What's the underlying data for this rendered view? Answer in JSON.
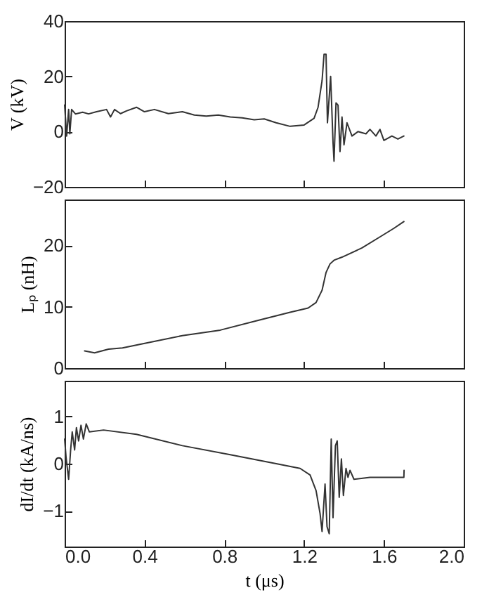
{
  "chart_data": [
    {
      "type": "line",
      "ylabel": "V (kV)",
      "xlim": [
        0,
        2.0
      ],
      "xticks": [
        0,
        0.4,
        0.8,
        1.2,
        1.6,
        2
      ],
      "ylim": [
        -20,
        40
      ],
      "yticks": [
        -20,
        0,
        20,
        40
      ],
      "tick_labels": "y",
      "x": [
        0,
        0.01,
        0.02,
        0.026,
        0.035,
        0.054,
        0.09,
        0.12,
        0.16,
        0.21,
        0.23,
        0.25,
        0.28,
        0.31,
        0.36,
        0.4,
        0.45,
        0.52,
        0.59,
        0.65,
        0.71,
        0.77,
        0.83,
        0.89,
        0.95,
        1.0,
        1.06,
        1.13,
        1.2,
        1.25,
        1.27,
        1.29,
        1.3,
        1.31,
        1.317,
        1.333,
        1.345,
        1.35,
        1.36,
        1.37,
        1.38,
        1.39,
        1.4,
        1.415,
        1.44,
        1.47,
        1.51,
        1.53,
        1.56,
        1.58,
        1.6,
        1.64,
        1.67,
        1.7
      ],
      "series": [
        {
          "color": "#333333",
          "values": [
            9.6,
            -1.6,
            8,
            -0.8,
            8,
            6.4,
            7,
            6.4,
            7.2,
            8,
            5.3,
            8,
            6.5,
            7.5,
            8.8,
            7.2,
            8,
            6.5,
            7.2,
            6,
            5.6,
            6,
            5.3,
            5,
            4.3,
            4.6,
            3.2,
            1.9,
            2.4,
            4.8,
            8.8,
            18.4,
            28,
            28,
            3.2,
            20,
            -4,
            -10.7,
            10.4,
            9.6,
            -7.2,
            5.3,
            -4.8,
            3.2,
            -1.6,
            0,
            -0.8,
            0.8,
            -1.6,
            0.8,
            -3.2,
            -1.6,
            -2.7,
            -1.6
          ]
        }
      ]
    },
    {
      "type": "line",
      "ylabel": "Lₚ (nH)",
      "xlim": [
        0,
        2.0
      ],
      "xticks": [
        0,
        0.4,
        0.8,
        1.2,
        1.6,
        2
      ],
      "ylim": [
        0,
        27.5
      ],
      "yticks": [
        0,
        10,
        20
      ],
      "tick_labels": "y",
      "x": [
        0.1,
        0.15,
        0.22,
        0.29,
        0.41,
        0.59,
        0.78,
        0.97,
        1.13,
        1.22,
        1.26,
        1.29,
        1.31,
        1.33,
        1.35,
        1.39,
        1.49,
        1.58,
        1.65,
        1.7
      ],
      "series": [
        {
          "color": "#333333",
          "values": [
            2.8,
            2.5,
            3.1,
            3.3,
            4.1,
            5.3,
            6.2,
            7.8,
            9.1,
            9.8,
            10.7,
            12.7,
            15.6,
            17.0,
            17.6,
            18.1,
            19.6,
            21.4,
            22.8,
            23.9
          ]
        }
      ]
    },
    {
      "type": "line",
      "xlabel": "t (μs)",
      "ylabel": "dI/dt (kA/ns)",
      "xlim": [
        0,
        2.0
      ],
      "xticks": [
        {
          "value": 0,
          "label": "0.0"
        },
        {
          "value": 0.4,
          "label": "0.4"
        },
        {
          "value": 0.8,
          "label": "0.8"
        },
        {
          "value": 1.2,
          "label": "1.2"
        },
        {
          "value": 1.6,
          "label": "1.6"
        },
        {
          "value": 2,
          "label": "2.0"
        }
      ],
      "ylim": [
        -1.75,
        1.75
      ],
      "yticks": [
        -1,
        0,
        1
      ],
      "x": [
        0,
        0.007,
        0.02,
        0.03,
        0.038,
        0.05,
        0.059,
        0.07,
        0.082,
        0.094,
        0.108,
        0.124,
        0.195,
        0.36,
        0.59,
        0.83,
        1.06,
        1.18,
        1.23,
        1.26,
        1.28,
        1.29,
        1.305,
        1.315,
        1.326,
        1.336,
        1.345,
        1.357,
        1.366,
        1.376,
        1.387,
        1.397,
        1.41,
        1.42,
        1.43,
        1.45,
        1.53,
        1.7,
        1.701
      ],
      "series": [
        {
          "color": "#333333",
          "values": [
            0.52,
            0.14,
            -0.33,
            0.29,
            0.67,
            0.29,
            0.76,
            0.48,
            0.81,
            0.52,
            0.84,
            0.67,
            0.71,
            0.62,
            0.38,
            0.19,
            0,
            -0.1,
            -0.24,
            -0.57,
            -1.05,
            -1.43,
            -0.43,
            -1.33,
            -1.48,
            0.52,
            -1.14,
            0.38,
            0.48,
            -0.71,
            0.1,
            -0.67,
            -0.1,
            -0.29,
            -0.14,
            -0.33,
            -0.29,
            -0.29,
            -0.14
          ]
        }
      ]
    }
  ]
}
